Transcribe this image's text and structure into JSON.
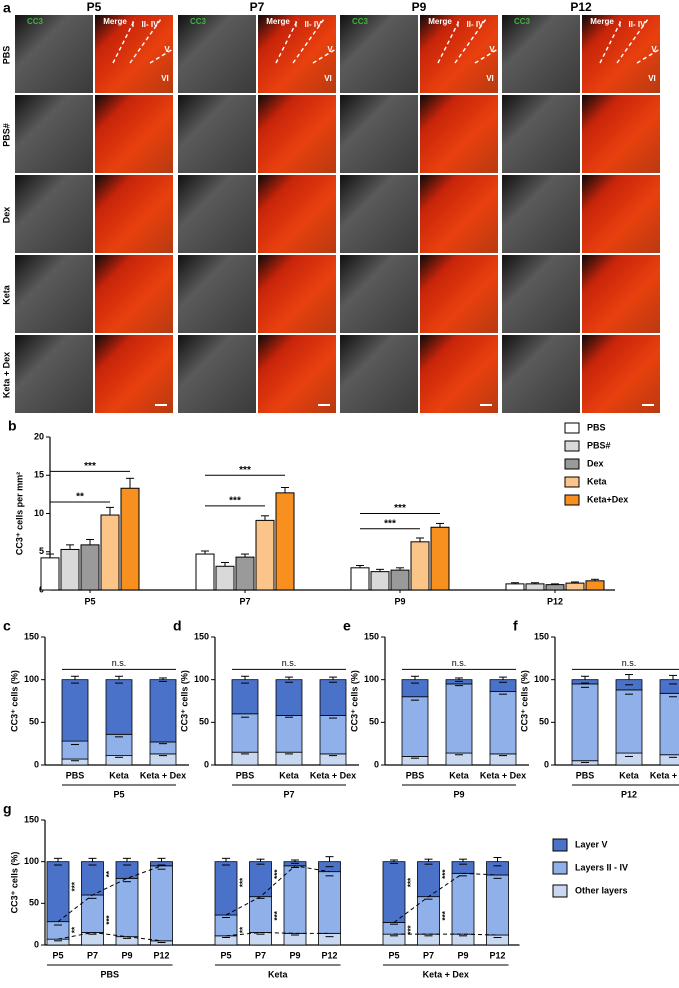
{
  "panel_a": {
    "panel": "a",
    "columns": [
      "P5",
      "P7",
      "P9",
      "P12"
    ],
    "channels": [
      "CC3",
      "Merge"
    ],
    "rows": [
      "PBS",
      "PBS#",
      "Dex",
      "Keta",
      "Keta + Dex"
    ],
    "layers": [
      "I",
      "II- IV",
      "V",
      "VI"
    ]
  },
  "chart_data": [
    {
      "panel": "b",
      "type": "bar",
      "ylabel": "CC3⁺ cells per mm²",
      "categories": [
        "P5",
        "P7",
        "P9",
        "P12"
      ],
      "series": [
        {
          "name": "PBS",
          "color": "#ffffff",
          "values": [
            4.2,
            4.7,
            2.9,
            0.8
          ],
          "errors": [
            0.5,
            0.4,
            0.3,
            0.15
          ]
        },
        {
          "name": "PBS#",
          "color": "#d9d9d9",
          "values": [
            5.3,
            3.1,
            2.4,
            0.8
          ],
          "errors": [
            0.6,
            0.5,
            0.3,
            0.15
          ]
        },
        {
          "name": "Dex",
          "color": "#9a9a9a",
          "values": [
            5.9,
            4.3,
            2.6,
            0.7
          ],
          "errors": [
            0.7,
            0.4,
            0.3,
            0.1
          ]
        },
        {
          "name": "Keta",
          "color": "#fbc58a",
          "values": [
            9.8,
            9.1,
            6.3,
            0.9
          ],
          "errors": [
            1.0,
            0.6,
            0.5,
            0.15
          ]
        },
        {
          "name": "Keta+Dex",
          "color": "#f7901e",
          "values": [
            13.3,
            12.7,
            8.2,
            1.2
          ],
          "errors": [
            1.3,
            0.7,
            0.5,
            0.2
          ]
        }
      ],
      "ylim": [
        0,
        20
      ],
      "yticks": [
        0,
        5,
        10,
        15,
        20
      ],
      "annotations": [
        {
          "text": "**",
          "category": "P5",
          "from": "PBS",
          "to": "Keta",
          "y": 11.5
        },
        {
          "text": "***",
          "category": "P5",
          "from": "PBS",
          "to": "Keta+Dex",
          "y": 15.5
        },
        {
          "text": "***",
          "category": "P7",
          "from": "PBS",
          "to": "Keta",
          "y": 11
        },
        {
          "text": "***",
          "category": "P7",
          "from": "PBS",
          "to": "Keta+Dex",
          "y": 15
        },
        {
          "text": "***",
          "category": "P9",
          "from": "PBS",
          "to": "Keta",
          "y": 8
        },
        {
          "text": "***",
          "category": "P9",
          "from": "PBS",
          "to": "Keta+Dex",
          "y": 10
        }
      ]
    },
    {
      "panel": "c",
      "type": "stacked_bar",
      "ylabel": "CC3⁺ cells (%)",
      "categories": [
        "PBS",
        "Keta",
        "Keta + Dex"
      ],
      "groups": [
        "P5"
      ],
      "series": [
        {
          "name": "Other layers",
          "color": "#c8d8f0",
          "values": [
            7,
            11,
            13
          ],
          "errors": [
            2,
            2,
            2
          ]
        },
        {
          "name": "Layers II - IV",
          "color": "#8fb0e8",
          "values": [
            21,
            25,
            14
          ],
          "errors": [
            4,
            3,
            2
          ]
        },
        {
          "name": "Layer V",
          "color": "#4a72c8",
          "values": [
            72,
            64,
            73
          ],
          "errors": [
            4,
            4,
            2
          ]
        }
      ],
      "ylim": [
        0,
        150
      ],
      "yticks": [
        0,
        50,
        100,
        150
      ],
      "annotations": [
        {
          "text": "n.s.",
          "y": 112
        }
      ]
    },
    {
      "panel": "d",
      "type": "stacked_bar",
      "ylabel": "CC3⁺ cells (%)",
      "categories": [
        "PBS",
        "Keta",
        "Keta + Dex"
      ],
      "groups": [
        "P7"
      ],
      "series": [
        {
          "name": "Other layers",
          "color": "#c8d8f0",
          "values": [
            15,
            15,
            13
          ],
          "errors": [
            2,
            2,
            2
          ]
        },
        {
          "name": "Layers II - IV",
          "color": "#8fb0e8",
          "values": [
            45,
            43,
            45
          ],
          "errors": [
            4,
            2,
            3
          ]
        },
        {
          "name": "Layer V",
          "color": "#4a72c8",
          "values": [
            40,
            42,
            42
          ],
          "errors": [
            4,
            3,
            3
          ]
        }
      ],
      "ylim": [
        0,
        150
      ],
      "yticks": [
        0,
        50,
        100,
        150
      ],
      "annotations": [
        {
          "text": "n.s.",
          "y": 112
        }
      ]
    },
    {
      "panel": "e",
      "type": "stacked_bar",
      "ylabel": "CC3⁺ cells (%)",
      "categories": [
        "PBS",
        "Keta",
        "Keta + Dex"
      ],
      "groups": [
        "P9"
      ],
      "series": [
        {
          "name": "Other layers",
          "color": "#c8d8f0",
          "values": [
            10,
            14,
            13
          ],
          "errors": [
            2,
            2,
            2
          ]
        },
        {
          "name": "Layers II - IV",
          "color": "#8fb0e8",
          "values": [
            70,
            81,
            73
          ],
          "errors": [
            4,
            2,
            3
          ]
        },
        {
          "name": "Layer V",
          "color": "#4a72c8",
          "values": [
            20,
            5,
            14
          ],
          "errors": [
            4,
            2,
            3
          ]
        }
      ],
      "ylim": [
        0,
        150
      ],
      "yticks": [
        0,
        50,
        100,
        150
      ],
      "annotations": [
        {
          "text": "n.s.",
          "y": 112
        }
      ]
    },
    {
      "panel": "f",
      "type": "stacked_bar",
      "ylabel": "CC3⁺ cells (%)",
      "categories": [
        "PBS",
        "Keta",
        "Keta + Dex"
      ],
      "groups": [
        "P12"
      ],
      "series": [
        {
          "name": "Other layers",
          "color": "#c8d8f0",
          "values": [
            5,
            14,
            12
          ],
          "errors": [
            2,
            4,
            3
          ]
        },
        {
          "name": "Layers II - IV",
          "color": "#8fb0e8",
          "values": [
            90,
            74,
            72
          ],
          "errors": [
            4,
            5,
            4
          ]
        },
        {
          "name": "Layer V",
          "color": "#4a72c8",
          "values": [
            5,
            12,
            16
          ],
          "errors": [
            4,
            6,
            5
          ]
        }
      ],
      "ylim": [
        0,
        150
      ],
      "yticks": [
        0,
        50,
        100,
        150
      ],
      "annotations": [
        {
          "text": "n.s.",
          "y": 112
        }
      ]
    },
    {
      "panel": "g",
      "type": "stacked_bar",
      "ylabel": "CC3⁺ cells (%)",
      "categories": [
        "P5",
        "P7",
        "P9",
        "P12",
        "P5",
        "P7",
        "P9",
        "P12",
        "P5",
        "P7",
        "P9",
        "P12"
      ],
      "groups": [
        "PBS",
        "Keta",
        "Keta + Dex"
      ],
      "series": [
        {
          "name": "Other layers",
          "color": "#c8d8f0",
          "values": [
            7,
            15,
            10,
            5,
            11,
            15,
            14,
            14,
            13,
            13,
            13,
            12
          ],
          "errors": [
            2,
            2,
            2,
            2,
            2,
            2,
            2,
            4,
            2,
            2,
            2,
            3
          ]
        },
        {
          "name": "Layers II - IV",
          "color": "#8fb0e8",
          "values": [
            21,
            45,
            70,
            90,
            25,
            43,
            81,
            74,
            14,
            45,
            73,
            72
          ],
          "errors": [
            4,
            4,
            4,
            4,
            3,
            2,
            2,
            5,
            2,
            3,
            3,
            4
          ]
        },
        {
          "name": "Layer V",
          "color": "#4a72c8",
          "values": [
            72,
            40,
            20,
            5,
            64,
            42,
            5,
            12,
            73,
            42,
            14,
            16
          ],
          "errors": [
            4,
            4,
            4,
            4,
            4,
            3,
            2,
            6,
            2,
            3,
            3,
            5
          ]
        }
      ],
      "ylim": [
        0,
        150
      ],
      "yticks": [
        0,
        50,
        100,
        150
      ],
      "legend": true,
      "annotations": [
        {
          "text": "***",
          "group": "PBS",
          "from": "P5",
          "to": "P7",
          "y": 70
        },
        {
          "text": "**",
          "group": "PBS",
          "from": "P5",
          "to": "P7",
          "y": 18
        },
        {
          "text": "**",
          "group": "PBS",
          "from": "P7",
          "to": "P9",
          "y": 85
        },
        {
          "text": "***",
          "group": "PBS",
          "from": "P7",
          "to": "P9",
          "y": 30
        },
        {
          "text": "***",
          "group": "Keta",
          "from": "P5",
          "to": "P7",
          "y": 75
        },
        {
          "text": "**",
          "group": "Keta",
          "from": "P5",
          "to": "P7",
          "y": 18
        },
        {
          "text": "***",
          "group": "Keta",
          "from": "P7",
          "to": "P9",
          "y": 85
        },
        {
          "text": "***",
          "group": "Keta",
          "from": "P7",
          "to": "P9",
          "y": 35
        },
        {
          "text": "***",
          "group": "Keta + Dex",
          "from": "P5",
          "to": "P7",
          "y": 75
        },
        {
          "text": "***",
          "group": "Keta + Dex",
          "from": "P5",
          "to": "P7",
          "y": 18
        },
        {
          "text": "***",
          "group": "Keta + Dex",
          "from": "P7",
          "to": "P9",
          "y": 85
        },
        {
          "text": "***",
          "group": "Keta + Dex",
          "from": "P7",
          "to": "P9",
          "y": 35
        }
      ]
    }
  ]
}
